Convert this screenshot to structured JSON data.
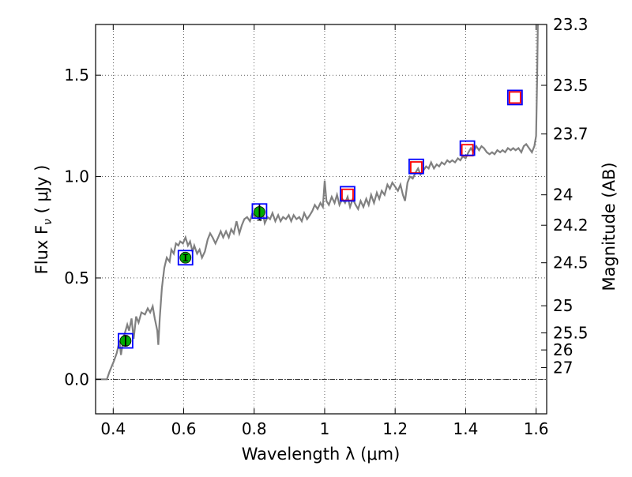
{
  "chart_data": {
    "type": "scatter",
    "xlabel": "Wavelength  λ (μm)",
    "ylabel": "Flux  F",
    "ylabel_sub": "ν",
    "ylabel_unit": "  ( μJy )",
    "y2label": "Magnitude (AB)",
    "xlim": [
      0.35,
      1.63
    ],
    "ylim": [
      -0.17,
      1.75
    ],
    "grid": true,
    "x_ticks": [
      {
        "value": 0.4,
        "label": "0.4"
      },
      {
        "value": 0.6,
        "label": "0.6"
      },
      {
        "value": 0.8,
        "label": "0.8"
      },
      {
        "value": 1.0,
        "label": "1"
      },
      {
        "value": 1.2,
        "label": "1.2"
      },
      {
        "value": 1.4,
        "label": "1.4"
      },
      {
        "value": 1.6,
        "label": "1.6"
      }
    ],
    "y_ticks": [
      {
        "value": 0.0,
        "label": "0.0"
      },
      {
        "value": 0.5,
        "label": "0.5"
      },
      {
        "value": 1.0,
        "label": "1.0"
      },
      {
        "value": 1.5,
        "label": "1.5"
      }
    ],
    "mag_ticks": [
      {
        "label": "23.3",
        "flux": 1.75
      },
      {
        "label": "23.5",
        "flux": 1.45
      },
      {
        "label": "23.7",
        "flux": 1.21
      },
      {
        "label": "24",
        "flux": 0.91
      },
      {
        "label": "24.2",
        "flux": 0.76
      },
      {
        "label": "24.5",
        "flux": 0.575
      },
      {
        "label": "25",
        "flux": 0.363
      },
      {
        "label": "25.5",
        "flux": 0.229
      },
      {
        "label": "26",
        "flux": 0.145
      },
      {
        "label": "27",
        "flux": 0.058
      }
    ],
    "model_sed": {
      "color": "#808080",
      "points": [
        [
          0.35,
          0.0
        ],
        [
          0.382,
          0.0
        ],
        [
          0.39,
          0.04
        ],
        [
          0.402,
          0.09
        ],
        [
          0.41,
          0.13
        ],
        [
          0.418,
          0.19
        ],
        [
          0.422,
          0.12
        ],
        [
          0.43,
          0.21
        ],
        [
          0.44,
          0.27
        ],
        [
          0.445,
          0.24
        ],
        [
          0.452,
          0.3
        ],
        [
          0.458,
          0.2
        ],
        [
          0.465,
          0.31
        ],
        [
          0.472,
          0.28
        ],
        [
          0.48,
          0.33
        ],
        [
          0.49,
          0.32
        ],
        [
          0.498,
          0.35
        ],
        [
          0.505,
          0.33
        ],
        [
          0.512,
          0.36
        ],
        [
          0.518,
          0.3
        ],
        [
          0.525,
          0.24
        ],
        [
          0.528,
          0.17
        ],
        [
          0.532,
          0.3
        ],
        [
          0.538,
          0.45
        ],
        [
          0.545,
          0.55
        ],
        [
          0.552,
          0.6
        ],
        [
          0.56,
          0.58
        ],
        [
          0.565,
          0.64
        ],
        [
          0.572,
          0.62
        ],
        [
          0.578,
          0.67
        ],
        [
          0.585,
          0.66
        ],
        [
          0.59,
          0.68
        ],
        [
          0.598,
          0.67
        ],
        [
          0.605,
          0.7
        ],
        [
          0.612,
          0.66
        ],
        [
          0.618,
          0.68
        ],
        [
          0.625,
          0.63
        ],
        [
          0.63,
          0.66
        ],
        [
          0.638,
          0.62
        ],
        [
          0.645,
          0.64
        ],
        [
          0.652,
          0.6
        ],
        [
          0.66,
          0.63
        ],
        [
          0.668,
          0.69
        ],
        [
          0.675,
          0.72
        ],
        [
          0.682,
          0.7
        ],
        [
          0.69,
          0.67
        ],
        [
          0.698,
          0.7
        ],
        [
          0.705,
          0.73
        ],
        [
          0.712,
          0.7
        ],
        [
          0.72,
          0.73
        ],
        [
          0.728,
          0.7
        ],
        [
          0.735,
          0.74
        ],
        [
          0.742,
          0.72
        ],
        [
          0.75,
          0.78
        ],
        [
          0.758,
          0.72
        ],
        [
          0.765,
          0.76
        ],
        [
          0.772,
          0.79
        ],
        [
          0.78,
          0.8
        ],
        [
          0.788,
          0.78
        ],
        [
          0.795,
          0.82
        ],
        [
          0.802,
          0.8
        ],
        [
          0.81,
          0.83
        ],
        [
          0.818,
          0.79
        ],
        [
          0.825,
          0.82
        ],
        [
          0.83,
          0.77
        ],
        [
          0.838,
          0.8
        ],
        [
          0.845,
          0.79
        ],
        [
          0.852,
          0.82
        ],
        [
          0.86,
          0.78
        ],
        [
          0.868,
          0.81
        ],
        [
          0.875,
          0.78
        ],
        [
          0.882,
          0.8
        ],
        [
          0.89,
          0.79
        ],
        [
          0.898,
          0.81
        ],
        [
          0.905,
          0.78
        ],
        [
          0.912,
          0.81
        ],
        [
          0.92,
          0.79
        ],
        [
          0.928,
          0.8
        ],
        [
          0.935,
          0.78
        ],
        [
          0.942,
          0.82
        ],
        [
          0.95,
          0.79
        ],
        [
          0.958,
          0.81
        ],
        [
          0.965,
          0.83
        ],
        [
          0.972,
          0.86
        ],
        [
          0.98,
          0.84
        ],
        [
          0.988,
          0.87
        ],
        [
          0.995,
          0.85
        ],
        [
          1.0,
          0.98
        ],
        [
          1.005,
          0.88
        ],
        [
          1.012,
          0.86
        ],
        [
          1.02,
          0.9
        ],
        [
          1.028,
          0.87
        ],
        [
          1.035,
          0.91
        ],
        [
          1.042,
          0.86
        ],
        [
          1.05,
          0.89
        ],
        [
          1.058,
          0.87
        ],
        [
          1.065,
          0.9
        ],
        [
          1.072,
          0.85
        ],
        [
          1.08,
          0.89
        ],
        [
          1.088,
          0.86
        ],
        [
          1.095,
          0.84
        ],
        [
          1.102,
          0.88
        ],
        [
          1.11,
          0.85
        ],
        [
          1.118,
          0.89
        ],
        [
          1.125,
          0.86
        ],
        [
          1.132,
          0.91
        ],
        [
          1.14,
          0.87
        ],
        [
          1.148,
          0.92
        ],
        [
          1.155,
          0.89
        ],
        [
          1.162,
          0.93
        ],
        [
          1.17,
          0.91
        ],
        [
          1.178,
          0.96
        ],
        [
          1.185,
          0.94
        ],
        [
          1.192,
          0.97
        ],
        [
          1.2,
          0.95
        ],
        [
          1.208,
          0.93
        ],
        [
          1.215,
          0.96
        ],
        [
          1.222,
          0.91
        ],
        [
          1.228,
          0.88
        ],
        [
          1.235,
          0.97
        ],
        [
          1.242,
          1.0
        ],
        [
          1.25,
          0.99
        ],
        [
          1.258,
          1.02
        ],
        [
          1.265,
          1.04
        ],
        [
          1.272,
          1.01
        ],
        [
          1.28,
          1.03
        ],
        [
          1.288,
          1.05
        ],
        [
          1.295,
          1.04
        ],
        [
          1.302,
          1.07
        ],
        [
          1.31,
          1.04
        ],
        [
          1.318,
          1.06
        ],
        [
          1.325,
          1.05
        ],
        [
          1.332,
          1.07
        ],
        [
          1.34,
          1.06
        ],
        [
          1.348,
          1.08
        ],
        [
          1.355,
          1.07
        ],
        [
          1.362,
          1.08
        ],
        [
          1.37,
          1.07
        ],
        [
          1.378,
          1.09
        ],
        [
          1.385,
          1.08
        ],
        [
          1.392,
          1.1
        ],
        [
          1.4,
          1.09
        ],
        [
          1.408,
          1.12
        ],
        [
          1.415,
          1.14
        ],
        [
          1.422,
          1.12
        ],
        [
          1.43,
          1.15
        ],
        [
          1.438,
          1.13
        ],
        [
          1.445,
          1.15
        ],
        [
          1.452,
          1.14
        ],
        [
          1.46,
          1.12
        ],
        [
          1.468,
          1.11
        ],
        [
          1.475,
          1.12
        ],
        [
          1.482,
          1.11
        ],
        [
          1.49,
          1.13
        ],
        [
          1.498,
          1.12
        ],
        [
          1.505,
          1.13
        ],
        [
          1.512,
          1.12
        ],
        [
          1.52,
          1.14
        ],
        [
          1.528,
          1.13
        ],
        [
          1.535,
          1.14
        ],
        [
          1.542,
          1.13
        ],
        [
          1.55,
          1.14
        ],
        [
          1.558,
          1.12
        ],
        [
          1.565,
          1.15
        ],
        [
          1.572,
          1.16
        ],
        [
          1.58,
          1.14
        ],
        [
          1.588,
          1.12
        ],
        [
          1.595,
          1.15
        ],
        [
          1.6,
          1.2
        ],
        [
          1.603,
          1.5
        ],
        [
          1.605,
          1.75
        ]
      ]
    },
    "observed": {
      "fill_color": "#00aa00",
      "points": [
        {
          "x": 0.435,
          "y": 0.19,
          "err": 0.025
        },
        {
          "x": 0.605,
          "y": 0.6,
          "err": 0.015
        },
        {
          "x": 0.815,
          "y": 0.825,
          "err": 0.04
        }
      ]
    },
    "model_red": {
      "color": "#ff0000",
      "points": [
        {
          "x": 1.065,
          "y": 0.91
        },
        {
          "x": 1.26,
          "y": 1.045
        },
        {
          "x": 1.405,
          "y": 1.13
        },
        {
          "x": 1.54,
          "y": 1.39
        }
      ]
    },
    "model_blue": {
      "color": "#0000ff",
      "points": [
        {
          "x": 0.435,
          "y": 0.19
        },
        {
          "x": 0.605,
          "y": 0.6
        },
        {
          "x": 0.815,
          "y": 0.83
        },
        {
          "x": 1.065,
          "y": 0.915
        },
        {
          "x": 1.26,
          "y": 1.05
        },
        {
          "x": 1.405,
          "y": 1.14
        },
        {
          "x": 1.54,
          "y": 1.39
        }
      ]
    }
  }
}
